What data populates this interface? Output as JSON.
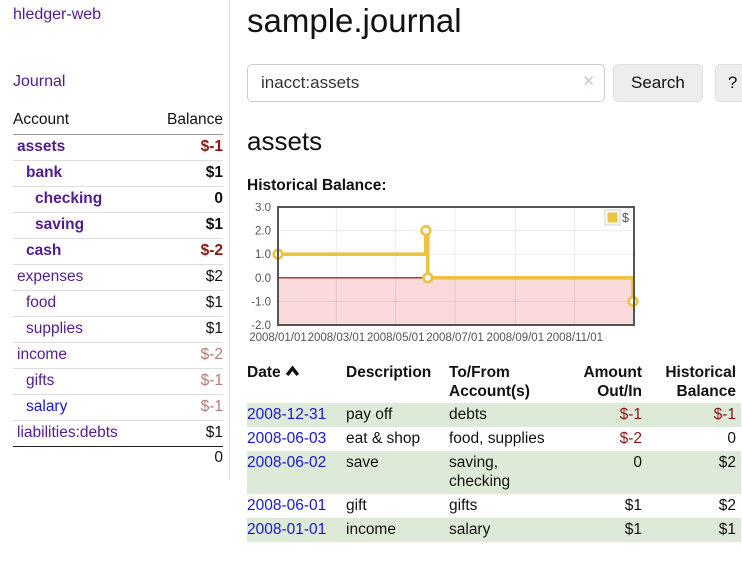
{
  "app": {
    "title": "hledger-web"
  },
  "colors": {
    "link_purple": "#531b93",
    "link_blue": "#1717d6",
    "negative_strong": "#8f1414",
    "negative_muted": "#b87a7a",
    "row_stripe_green": "#dcead7",
    "button_gray": "#ededed"
  },
  "sidebar": {
    "journal_label": "Journal",
    "accounts": {
      "header_account": "Account",
      "header_balance": "Balance",
      "rows": [
        {
          "name": "assets",
          "balance": "$-1",
          "indent": 0,
          "selected": true,
          "balance_tone": "negative-strong",
          "link_tone": "purple"
        },
        {
          "name": "bank",
          "balance": "$1",
          "indent": 1,
          "selected": true,
          "balance_tone": "normal",
          "link_tone": "purple"
        },
        {
          "name": "checking",
          "balance": "0",
          "indent": 2,
          "selected": true,
          "balance_tone": "normal",
          "link_tone": "purple"
        },
        {
          "name": "saving",
          "balance": "$1",
          "indent": 2,
          "selected": true,
          "balance_tone": "normal",
          "link_tone": "purple"
        },
        {
          "name": "cash",
          "balance": "$-2",
          "indent": 1,
          "selected": true,
          "balance_tone": "negative-strong",
          "link_tone": "purple"
        },
        {
          "name": "expenses",
          "balance": "$2",
          "indent": 0,
          "selected": false,
          "balance_tone": "normal",
          "link_tone": "purple"
        },
        {
          "name": "food",
          "balance": "$1",
          "indent": 1,
          "selected": false,
          "balance_tone": "normal",
          "link_tone": "purple"
        },
        {
          "name": "supplies",
          "balance": "$1",
          "indent": 1,
          "selected": false,
          "balance_tone": "normal",
          "link_tone": "purple"
        },
        {
          "name": "income",
          "balance": "$-2",
          "indent": 0,
          "selected": false,
          "balance_tone": "negative-muted",
          "link_tone": "purple"
        },
        {
          "name": "gifts",
          "balance": "$-1",
          "indent": 1,
          "selected": false,
          "balance_tone": "negative-muted",
          "link_tone": "purple"
        },
        {
          "name": "salary",
          "balance": "$-1",
          "indent": 1,
          "selected": false,
          "balance_tone": "negative-muted",
          "link_tone": "blue"
        },
        {
          "name": "liabilities:debts",
          "balance": "$1",
          "indent": 0,
          "selected": false,
          "balance_tone": "normal",
          "link_tone": "purple"
        }
      ],
      "total": "0"
    }
  },
  "main": {
    "page_title": "sample.journal",
    "search": {
      "value": "inacct:assets",
      "clear_icon": "✕",
      "button_label": "Search",
      "help_label": "?"
    },
    "account_heading": "assets",
    "chart_title": "Historical Balance:"
  },
  "chart_data": {
    "type": "line",
    "step": true,
    "title": "Historical Balance:",
    "x_range": [
      "2008-01-01",
      "2009-01-01"
    ],
    "ylim": [
      -2,
      3
    ],
    "y_ticks": [
      "3.0",
      "2.0",
      "1.0",
      "0.0",
      "-1.0",
      "-2.0"
    ],
    "x_tick_dates": [
      "2008-01-01",
      "2008-03-01",
      "2008-05-01",
      "2008-07-01",
      "2008-09-01",
      "2008-11-01"
    ],
    "x_tick_labels": [
      "2008/01/01",
      "2008/03/01",
      "2008/05/01",
      "2008/07/01",
      "2008/09/01",
      "2008/11/01"
    ],
    "series": [
      {
        "name": "$",
        "color": "#edc240",
        "points": [
          {
            "date": "2008-01-01",
            "value": 1
          },
          {
            "date": "2008-06-01",
            "value": 2
          },
          {
            "date": "2008-06-03",
            "value": 0
          },
          {
            "date": "2008-12-31",
            "value": -1
          }
        ]
      }
    ],
    "legend": {
      "label": "$",
      "position": "top-right"
    },
    "grid": true,
    "negative_region_color": "#fadada",
    "zero_line_color": "#8b0000",
    "border_color": "#545454",
    "label_color": "#545454"
  },
  "register": {
    "headers": {
      "date": "Date",
      "description": "Description",
      "accounts": "To/From Account(s)",
      "amount": "Amount Out/In",
      "balance": "Historical Balance"
    },
    "sort": "date-ascending",
    "rows": [
      {
        "date": "2008-12-31",
        "description": "pay off",
        "accounts": "debts",
        "amount": "$-1",
        "balance": "$-1"
      },
      {
        "date": "2008-06-03",
        "description": "eat & shop",
        "accounts": "food, supplies",
        "amount": "$-2",
        "balance": "0"
      },
      {
        "date": "2008-06-02",
        "description": "save",
        "accounts": "saving, checking",
        "amount": "0",
        "balance": "$2"
      },
      {
        "date": "2008-06-01",
        "description": "gift",
        "accounts": "gifts",
        "amount": "$1",
        "balance": "$2"
      },
      {
        "date": "2008-01-01",
        "description": "income",
        "accounts": "salary",
        "amount": "$1",
        "balance": "$1"
      }
    ]
  }
}
